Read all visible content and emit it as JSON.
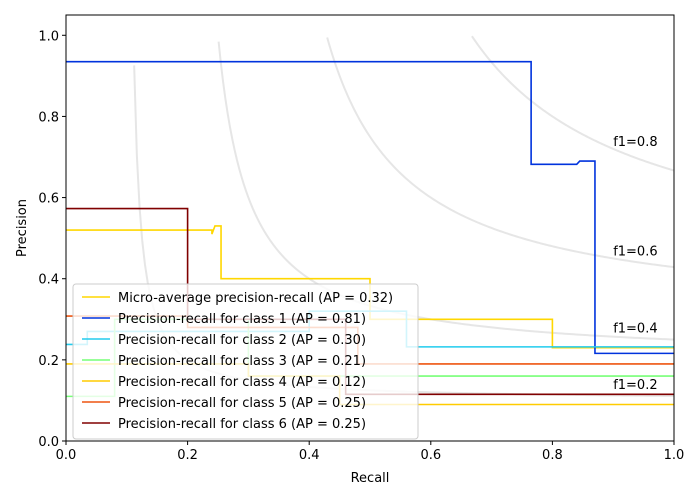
{
  "chart_data": {
    "type": "line",
    "title": "",
    "xlabel": "Recall",
    "ylabel": "Precision",
    "xlim": [
      0.0,
      1.0
    ],
    "ylim": [
      0.0,
      1.05
    ],
    "xticks": [
      "0.0",
      "0.2",
      "0.4",
      "0.6",
      "0.8",
      "1.0"
    ],
    "yticks": [
      "0.0",
      "0.2",
      "0.4",
      "0.6",
      "0.8",
      "1.0"
    ],
    "grid": false,
    "legend_position": "lower-left",
    "iso_f1_curves": [
      {
        "f1": 0.2,
        "label": "f1=0.2",
        "label_y": 0.14
      },
      {
        "f1": 0.4,
        "label": "f1=0.4",
        "label_y": 0.28
      },
      {
        "f1": 0.6,
        "label": "f1=0.6",
        "label_y": 0.47
      },
      {
        "f1": 0.8,
        "label": "f1=0.8",
        "label_y": 0.74
      }
    ],
    "series": [
      {
        "name": "Micro-average precision-recall (AP = 0.32)",
        "color": "#ffd700",
        "points": [
          [
            0.0,
            0.52
          ],
          [
            0.24,
            0.52
          ],
          [
            0.24,
            0.51
          ],
          [
            0.245,
            0.53
          ],
          [
            0.255,
            0.53
          ],
          [
            0.255,
            0.4
          ],
          [
            0.5,
            0.4
          ],
          [
            0.5,
            0.3
          ],
          [
            0.8,
            0.3
          ],
          [
            0.8,
            0.23
          ],
          [
            1.0,
            0.23
          ]
        ]
      },
      {
        "name": "Precision-recall for class 1 (AP = 0.81)",
        "color": "#0033dd",
        "points": [
          [
            0.0,
            0.935
          ],
          [
            0.765,
            0.935
          ],
          [
            0.765,
            0.682
          ],
          [
            0.84,
            0.682
          ],
          [
            0.845,
            0.69
          ],
          [
            0.87,
            0.69
          ],
          [
            0.87,
            0.216
          ],
          [
            1.0,
            0.216
          ]
        ]
      },
      {
        "name": "Precision-recall for class 2 (AP = 0.30)",
        "color": "#22ccee",
        "points": [
          [
            0.0,
            0.238
          ],
          [
            0.035,
            0.238
          ],
          [
            0.035,
            0.27
          ],
          [
            0.4,
            0.27
          ],
          [
            0.4,
            0.32
          ],
          [
            0.56,
            0.32
          ],
          [
            0.56,
            0.232
          ],
          [
            1.0,
            0.232
          ]
        ]
      },
      {
        "name": "Precision-recall for class 3 (AP = 0.21)",
        "color": "#77ff77",
        "points": [
          [
            0.0,
            0.11
          ],
          [
            0.08,
            0.11
          ],
          [
            0.08,
            0.3
          ],
          [
            0.3,
            0.3
          ],
          [
            0.3,
            0.16
          ],
          [
            1.0,
            0.16
          ]
        ]
      },
      {
        "name": "Precision-recall for class 4 (AP = 0.12)",
        "color": "#ffcc00",
        "points": [
          [
            0.0,
            0.19
          ],
          [
            0.3,
            0.19
          ],
          [
            0.3,
            0.16
          ],
          [
            0.45,
            0.16
          ],
          [
            0.45,
            0.09
          ],
          [
            1.0,
            0.09
          ]
        ]
      },
      {
        "name": "Precision-recall for class 5 (AP = 0.25)",
        "color": "#ee5511",
        "points": [
          [
            0.0,
            0.308
          ],
          [
            0.2,
            0.308
          ],
          [
            0.2,
            0.28
          ],
          [
            0.48,
            0.28
          ],
          [
            0.48,
            0.19
          ],
          [
            1.0,
            0.19
          ]
        ]
      },
      {
        "name": "Precision-recall for class 6 (AP = 0.25)",
        "color": "#800000",
        "points": [
          [
            0.0,
            0.573
          ],
          [
            0.2,
            0.573
          ],
          [
            0.2,
            0.3
          ],
          [
            0.46,
            0.3
          ],
          [
            0.46,
            0.115
          ],
          [
            1.0,
            0.115
          ]
        ]
      }
    ]
  }
}
